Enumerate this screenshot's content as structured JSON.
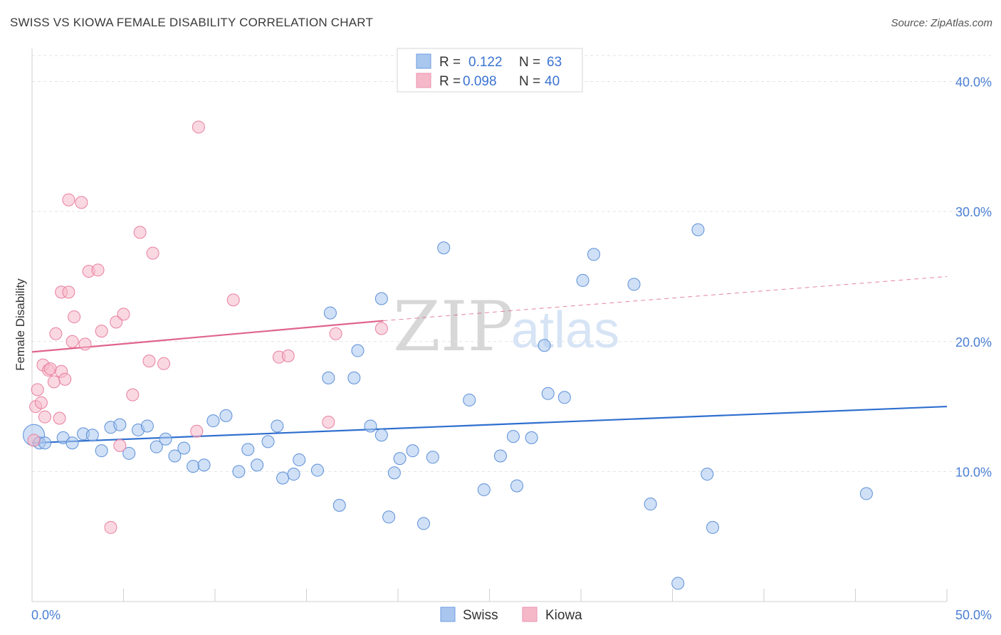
{
  "title": "SWISS VS KIOWA FEMALE DISABILITY CORRELATION CHART",
  "source": "Source: ZipAtlas.com",
  "watermark": {
    "zip": "ZIP",
    "atlas": "atlas"
  },
  "legend": {
    "rows": [
      {
        "r_label": "R =",
        "r_value": "0.122",
        "n_label": "N =",
        "n_value": "63",
        "color": "#a9c6ef"
      },
      {
        "r_label": "R =",
        "r_value": "0.098",
        "n_label": "N =",
        "n_value": "40",
        "color": "#f5b8c9"
      }
    ]
  },
  "bottom_legend": [
    "Swiss",
    "Kiowa"
  ],
  "chart_data": {
    "type": "scatter",
    "title": "SWISS VS KIOWA FEMALE DISABILITY CORRELATION CHART",
    "xlabel": "",
    "ylabel": "Female Disability",
    "xlim": [
      0,
      50
    ],
    "ylim": [
      0,
      42
    ],
    "x_tick_labels": [
      "0.0%",
      "50.0%"
    ],
    "y_ticks": [
      10,
      20,
      30,
      40
    ],
    "y_tick_labels": [
      "10.0%",
      "20.0%",
      "30.0%",
      "40.0%"
    ],
    "grid": true,
    "legend_placement": "top-center",
    "series": [
      {
        "name": "Swiss",
        "color": "#a9c6ef",
        "edge": "#5b8fd8",
        "line_color": "#2f6fcf",
        "trend": [
          [
            0,
            12.2
          ],
          [
            50,
            15.0
          ]
        ],
        "points": [
          [
            0.1,
            12.8
          ],
          [
            0.4,
            12.2
          ],
          [
            0.7,
            12.2
          ],
          [
            1.7,
            12.6
          ],
          [
            2.2,
            12.2
          ],
          [
            2.8,
            12.9
          ],
          [
            3.3,
            12.8
          ],
          [
            3.8,
            11.6
          ],
          [
            4.3,
            13.4
          ],
          [
            4.8,
            13.6
          ],
          [
            5.3,
            11.4
          ],
          [
            5.8,
            13.2
          ],
          [
            6.3,
            13.5
          ],
          [
            6.8,
            11.9
          ],
          [
            7.3,
            12.5
          ],
          [
            7.8,
            11.2
          ],
          [
            8.3,
            11.8
          ],
          [
            8.8,
            10.4
          ],
          [
            9.4,
            10.5
          ],
          [
            9.9,
            13.9
          ],
          [
            10.6,
            14.3
          ],
          [
            11.3,
            10.0
          ],
          [
            11.8,
            11.7
          ],
          [
            12.3,
            10.5
          ],
          [
            12.9,
            12.3
          ],
          [
            13.4,
            13.5
          ],
          [
            13.7,
            9.5
          ],
          [
            14.3,
            9.8
          ],
          [
            14.6,
            10.9
          ],
          [
            15.6,
            10.1
          ],
          [
            16.2,
            17.2
          ],
          [
            16.3,
            22.2
          ],
          [
            16.8,
            7.4
          ],
          [
            17.6,
            17.2
          ],
          [
            17.8,
            19.3
          ],
          [
            18.5,
            13.5
          ],
          [
            19.1,
            12.8
          ],
          [
            19.1,
            23.3
          ],
          [
            19.5,
            6.5
          ],
          [
            19.8,
            9.9
          ],
          [
            20.1,
            11.0
          ],
          [
            20.8,
            11.6
          ],
          [
            21.4,
            6.0
          ],
          [
            21.9,
            11.1
          ],
          [
            22.5,
            27.2
          ],
          [
            23.9,
            15.5
          ],
          [
            24.7,
            8.6
          ],
          [
            25.6,
            11.2
          ],
          [
            26.3,
            12.7
          ],
          [
            26.5,
            8.9
          ],
          [
            27.3,
            12.6
          ],
          [
            28.0,
            19.7
          ],
          [
            28.2,
            16.0
          ],
          [
            29.1,
            15.7
          ],
          [
            30.1,
            24.7
          ],
          [
            30.7,
            26.7
          ],
          [
            32.9,
            24.4
          ],
          [
            33.8,
            7.5
          ],
          [
            35.3,
            1.4
          ],
          [
            36.4,
            28.6
          ],
          [
            36.9,
            9.8
          ],
          [
            37.2,
            5.7
          ],
          [
            45.6,
            8.3
          ]
        ]
      },
      {
        "name": "Kiowa",
        "color": "#f5b8c9",
        "edge": "#e87fa0",
        "line_color": "#e0648c",
        "trend": [
          [
            0,
            19.2
          ],
          [
            19.2,
            21.6
          ]
        ],
        "trend_dashed": [
          [
            19.2,
            21.6
          ],
          [
            50,
            25.0
          ]
        ],
        "points": [
          [
            0.1,
            12.4
          ],
          [
            0.2,
            15.0
          ],
          [
            0.3,
            16.3
          ],
          [
            0.5,
            15.3
          ],
          [
            0.6,
            18.2
          ],
          [
            0.7,
            14.2
          ],
          [
            0.9,
            17.8
          ],
          [
            1.0,
            17.9
          ],
          [
            1.2,
            16.9
          ],
          [
            1.3,
            20.6
          ],
          [
            1.5,
            14.1
          ],
          [
            1.6,
            17.7
          ],
          [
            1.6,
            23.8
          ],
          [
            1.8,
            17.1
          ],
          [
            2.0,
            23.8
          ],
          [
            2.0,
            30.9
          ],
          [
            2.2,
            20.0
          ],
          [
            2.3,
            21.9
          ],
          [
            2.7,
            30.7
          ],
          [
            2.9,
            19.8
          ],
          [
            3.1,
            25.4
          ],
          [
            3.6,
            25.5
          ],
          [
            3.8,
            20.8
          ],
          [
            4.3,
            5.7
          ],
          [
            4.6,
            21.5
          ],
          [
            4.8,
            12.0
          ],
          [
            5.0,
            22.1
          ],
          [
            5.5,
            15.9
          ],
          [
            5.9,
            28.4
          ],
          [
            6.4,
            18.5
          ],
          [
            6.6,
            26.8
          ],
          [
            7.2,
            18.3
          ],
          [
            9.0,
            13.1
          ],
          [
            9.1,
            36.5
          ],
          [
            11.0,
            23.2
          ],
          [
            13.5,
            18.8
          ],
          [
            14.0,
            18.9
          ],
          [
            16.2,
            13.8
          ],
          [
            16.6,
            20.6
          ],
          [
            19.1,
            21.0
          ]
        ]
      }
    ]
  }
}
